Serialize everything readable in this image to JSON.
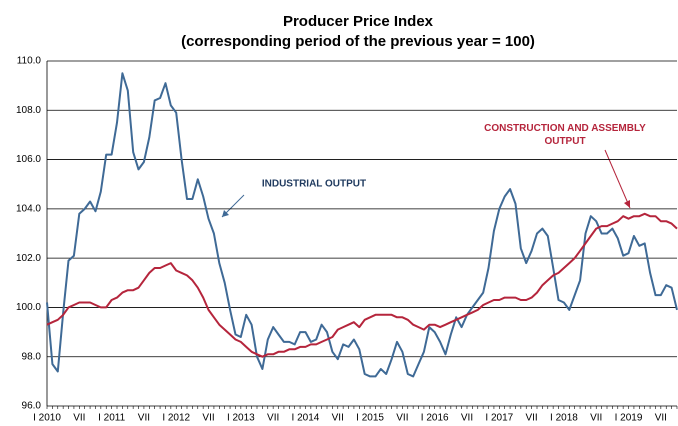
{
  "chart_data": {
    "type": "line",
    "title": "Producer Price Index",
    "subtitle": "(corresponding period of the previous year = 100)",
    "categories": [
      "I 2010",
      null,
      null,
      null,
      null,
      null,
      "VII",
      null,
      null,
      null,
      null,
      null,
      "I 2011",
      null,
      null,
      null,
      null,
      null,
      "VII",
      null,
      null,
      null,
      null,
      null,
      "I 2012",
      null,
      null,
      null,
      null,
      null,
      "VII",
      null,
      null,
      null,
      null,
      null,
      "I 2013",
      null,
      null,
      null,
      null,
      null,
      "VII",
      null,
      null,
      null,
      null,
      null,
      "I 2014",
      null,
      null,
      null,
      null,
      null,
      "VII",
      null,
      null,
      null,
      null,
      null,
      "I 2015",
      null,
      null,
      null,
      null,
      null,
      "VII",
      null,
      null,
      null,
      null,
      null,
      "I 2016",
      null,
      null,
      null,
      null,
      null,
      "VII",
      null,
      null,
      null,
      null,
      null,
      "I 2017",
      null,
      null,
      null,
      null,
      null,
      "VII",
      null,
      null,
      null,
      null,
      null,
      "I 2018",
      null,
      null,
      null,
      null,
      null,
      "VII",
      null,
      null,
      null,
      null,
      null,
      "I 2019",
      null,
      null,
      null,
      null,
      null,
      "VII",
      null,
      null,
      null
    ],
    "series": [
      {
        "name": "INDUSTRIAL OUTPUT",
        "color": "#3f6a96",
        "values": [
          100.2,
          97.7,
          97.4,
          99.8,
          101.9,
          102.1,
          103.8,
          104.0,
          104.3,
          103.9,
          104.7,
          106.2,
          106.2,
          107.5,
          109.5,
          108.8,
          106.3,
          105.6,
          105.9,
          106.9,
          108.4,
          108.5,
          109.1,
          108.2,
          107.9,
          106.0,
          104.4,
          104.4,
          105.2,
          104.5,
          103.6,
          103.0,
          101.8,
          101.0,
          99.9,
          98.9,
          98.8,
          99.7,
          99.3,
          98.0,
          97.5,
          98.7,
          99.2,
          98.9,
          98.6,
          98.6,
          98.5,
          99.0,
          99.0,
          98.6,
          98.7,
          99.3,
          99.0,
          98.2,
          97.9,
          98.5,
          98.4,
          98.7,
          98.3,
          97.3,
          97.2,
          97.2,
          97.5,
          97.3,
          97.9,
          98.6,
          98.2,
          97.3,
          97.2,
          97.7,
          98.2,
          99.2,
          99.0,
          98.6,
          98.1,
          98.9,
          99.6,
          99.2,
          99.7,
          100.0,
          100.3,
          100.6,
          101.6,
          103.1,
          104.0,
          104.5,
          104.8,
          104.2,
          102.4,
          101.8,
          102.3,
          103.0,
          103.2,
          102.9,
          101.6,
          100.3,
          100.2,
          99.9,
          100.5,
          101.1,
          103.0,
          103.7,
          103.5,
          103.0,
          103.0,
          103.2,
          102.8,
          102.1,
          102.2,
          102.9,
          102.5,
          102.6,
          101.4,
          100.5,
          100.5,
          100.9,
          100.8,
          99.9
        ]
      },
      {
        "name": "CONSTRUCTION AND ASSEMBLY OUTPUT",
        "color": "#b5253c",
        "values": [
          99.3,
          99.4,
          99.5,
          99.7,
          100.0,
          100.1,
          100.2,
          100.2,
          100.2,
          100.1,
          100.0,
          100.0,
          100.3,
          100.4,
          100.6,
          100.7,
          100.7,
          100.8,
          101.1,
          101.4,
          101.6,
          101.6,
          101.7,
          101.8,
          101.5,
          101.4,
          101.3,
          101.1,
          100.8,
          100.4,
          99.9,
          99.6,
          99.3,
          99.1,
          98.9,
          98.7,
          98.6,
          98.4,
          98.2,
          98.1,
          98.0,
          98.1,
          98.1,
          98.2,
          98.2,
          98.3,
          98.3,
          98.4,
          98.4,
          98.5,
          98.5,
          98.6,
          98.7,
          98.8,
          99.1,
          99.2,
          99.3,
          99.4,
          99.2,
          99.5,
          99.6,
          99.7,
          99.7,
          99.7,
          99.7,
          99.6,
          99.6,
          99.5,
          99.3,
          99.2,
          99.1,
          99.3,
          99.3,
          99.2,
          99.3,
          99.4,
          99.5,
          99.6,
          99.7,
          99.8,
          99.9,
          100.1,
          100.2,
          100.3,
          100.3,
          100.4,
          100.4,
          100.4,
          100.3,
          100.3,
          100.4,
          100.6,
          100.9,
          101.1,
          101.3,
          101.4,
          101.6,
          101.8,
          102.0,
          102.3,
          102.6,
          102.9,
          103.2,
          103.3,
          103.3,
          103.4,
          103.5,
          103.7,
          103.6,
          103.7,
          103.7,
          103.8,
          103.7,
          103.7,
          103.5,
          103.5,
          103.4,
          103.2
        ]
      }
    ],
    "ylim": [
      96,
      110
    ],
    "yticks": [
      {
        "value": 96,
        "label": "96.0"
      },
      {
        "value": 98,
        "label": "98.0"
      },
      {
        "value": 100,
        "label": "100.0"
      },
      {
        "value": 102,
        "label": "102.0"
      },
      {
        "value": 104,
        "label": "104.0"
      },
      {
        "value": 106,
        "label": "106.0"
      },
      {
        "value": 108,
        "label": "108.0"
      },
      {
        "value": 110,
        "label": "110.0"
      }
    ],
    "grid": true
  }
}
